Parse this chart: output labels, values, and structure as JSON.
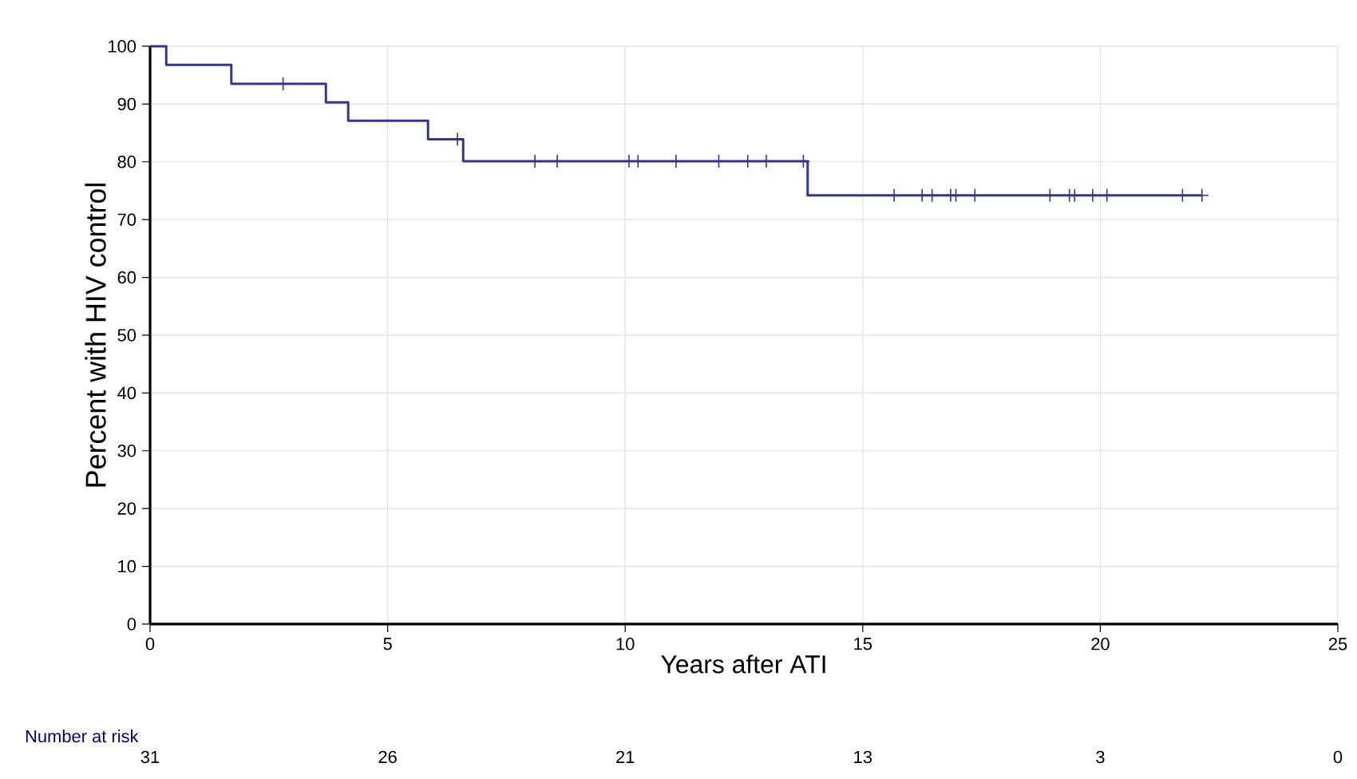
{
  "chart_data": {
    "type": "step",
    "xlabel": "Years after ATI",
    "ylabel": "Percent with HIV control",
    "series": [
      {
        "type": "step",
        "color": "#33339a",
        "x": [
          0,
          0.34,
          1.71,
          3.7,
          4.17,
          5.85,
          6.59,
          13.84,
          22.14
        ],
        "values": [
          100,
          96.8,
          93.5,
          90.3,
          87.1,
          83.9,
          80.1,
          74.2,
          74.2
        ]
      },
      {
        "type": "scatter",
        "marker": "cross",
        "color": "#33339a",
        "x": [
          2.8,
          6.47,
          8.1,
          8.57,
          10.08,
          10.27,
          11.07,
          11.97,
          12.58,
          12.97,
          13.75,
          15.66,
          16.25,
          16.46,
          16.85,
          16.96,
          17.36,
          18.94,
          19.35,
          19.46,
          19.84,
          20.14,
          21.73,
          22.14
        ],
        "values": [
          93.5,
          83.9,
          80.1,
          80.1,
          80.1,
          80.1,
          80.1,
          80.1,
          80.1,
          80.1,
          80.1,
          74.2,
          74.2,
          74.2,
          74.2,
          74.2,
          74.2,
          74.2,
          74.2,
          74.2,
          74.2,
          74.2,
          74.2,
          74.2
        ]
      }
    ],
    "xlim": [
      0,
      25
    ],
    "xticks": [
      0,
      5,
      10,
      15,
      20,
      25
    ],
    "ylim": [
      0,
      100
    ],
    "yticks": [
      0,
      10,
      20,
      30,
      40,
      50,
      60,
      70,
      80,
      90,
      100
    ],
    "grid": true,
    "annotations": [
      "Number at risk",
      "31",
      "26",
      "21",
      "13",
      "3",
      "0"
    ]
  }
}
